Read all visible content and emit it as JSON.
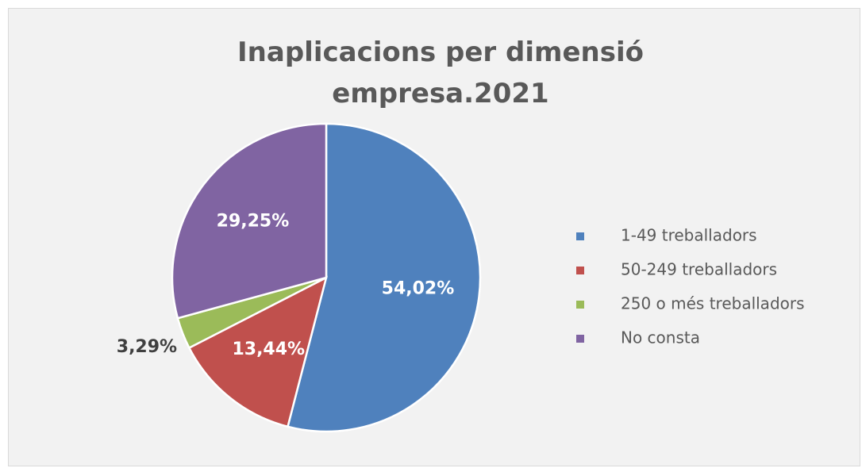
{
  "chart_data": {
    "type": "pie",
    "title": "Inaplicacions per dimensió empresa.2021",
    "categories": [
      "1-49 treballadors",
      "50-249 treballadors",
      "250 o més treballadors",
      "No consta"
    ],
    "values": [
      54.02,
      13.44,
      3.29,
      29.25
    ],
    "value_labels": [
      "54,02%",
      "13,44%",
      "3,29%",
      "29,25%"
    ],
    "colors": [
      "#4f81bd",
      "#c0504d",
      "#9bbb59",
      "#8064a2"
    ],
    "legend": "right"
  }
}
